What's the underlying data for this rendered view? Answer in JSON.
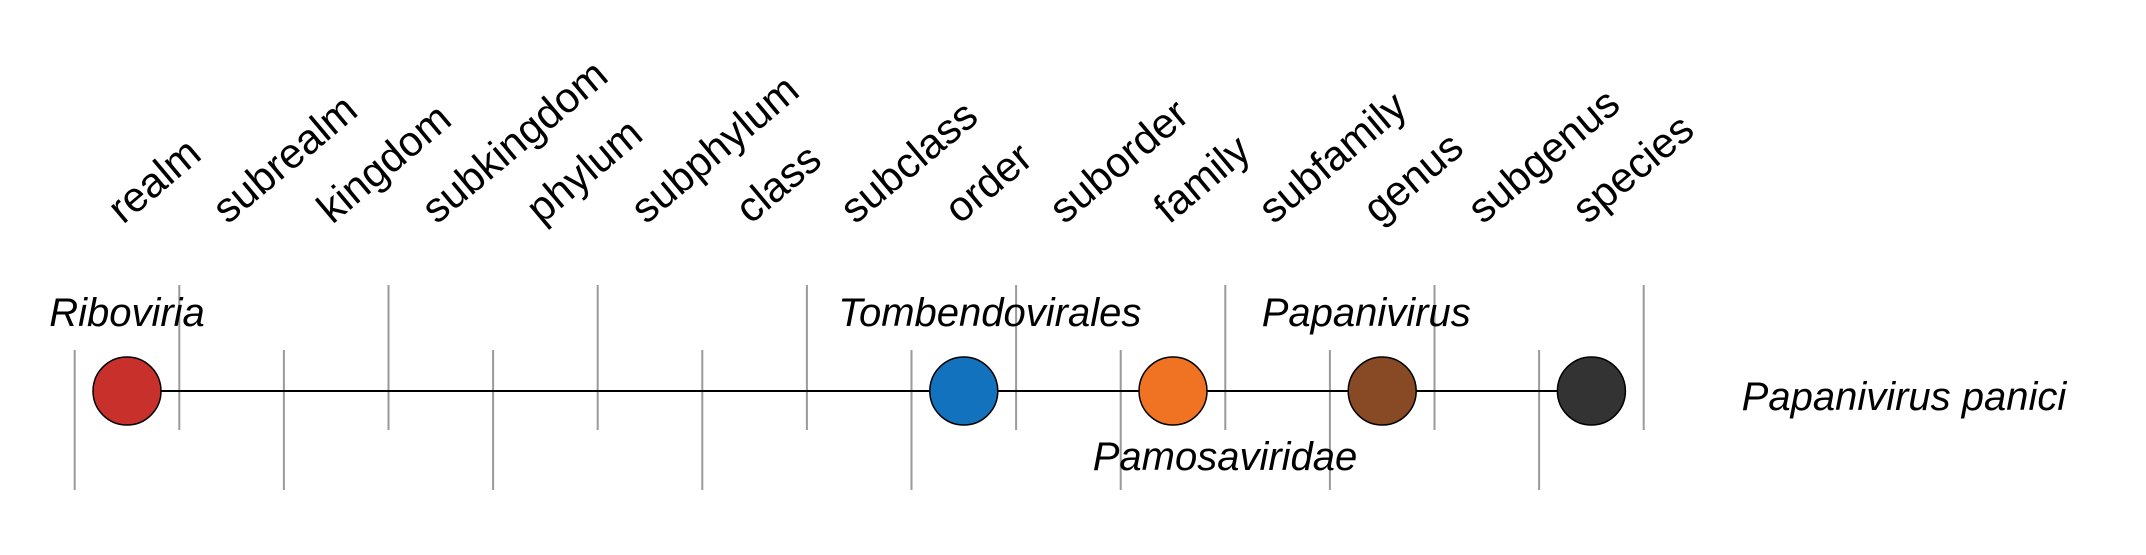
{
  "ranks": [
    "realm",
    "subrealm",
    "kingdom",
    "subkingdom",
    "phylum",
    "subphylum",
    "class",
    "subclass",
    "order",
    "suborder",
    "family",
    "subfamily",
    "genus",
    "subgenus",
    "species"
  ],
  "taxa": [
    {
      "name": "Riboviria",
      "rank": "realm",
      "color": "#c8312b"
    },
    {
      "name": "Tombendovirales",
      "rank": "order",
      "color": "#1272bd"
    },
    {
      "name": "Pamosaviridae",
      "rank": "family",
      "color": "#f07323"
    },
    {
      "name": "Papanivirus",
      "rank": "genus",
      "color": "#874a24"
    },
    {
      "name": "Papanivirus panici",
      "rank": "species",
      "color": "#333333"
    }
  ]
}
